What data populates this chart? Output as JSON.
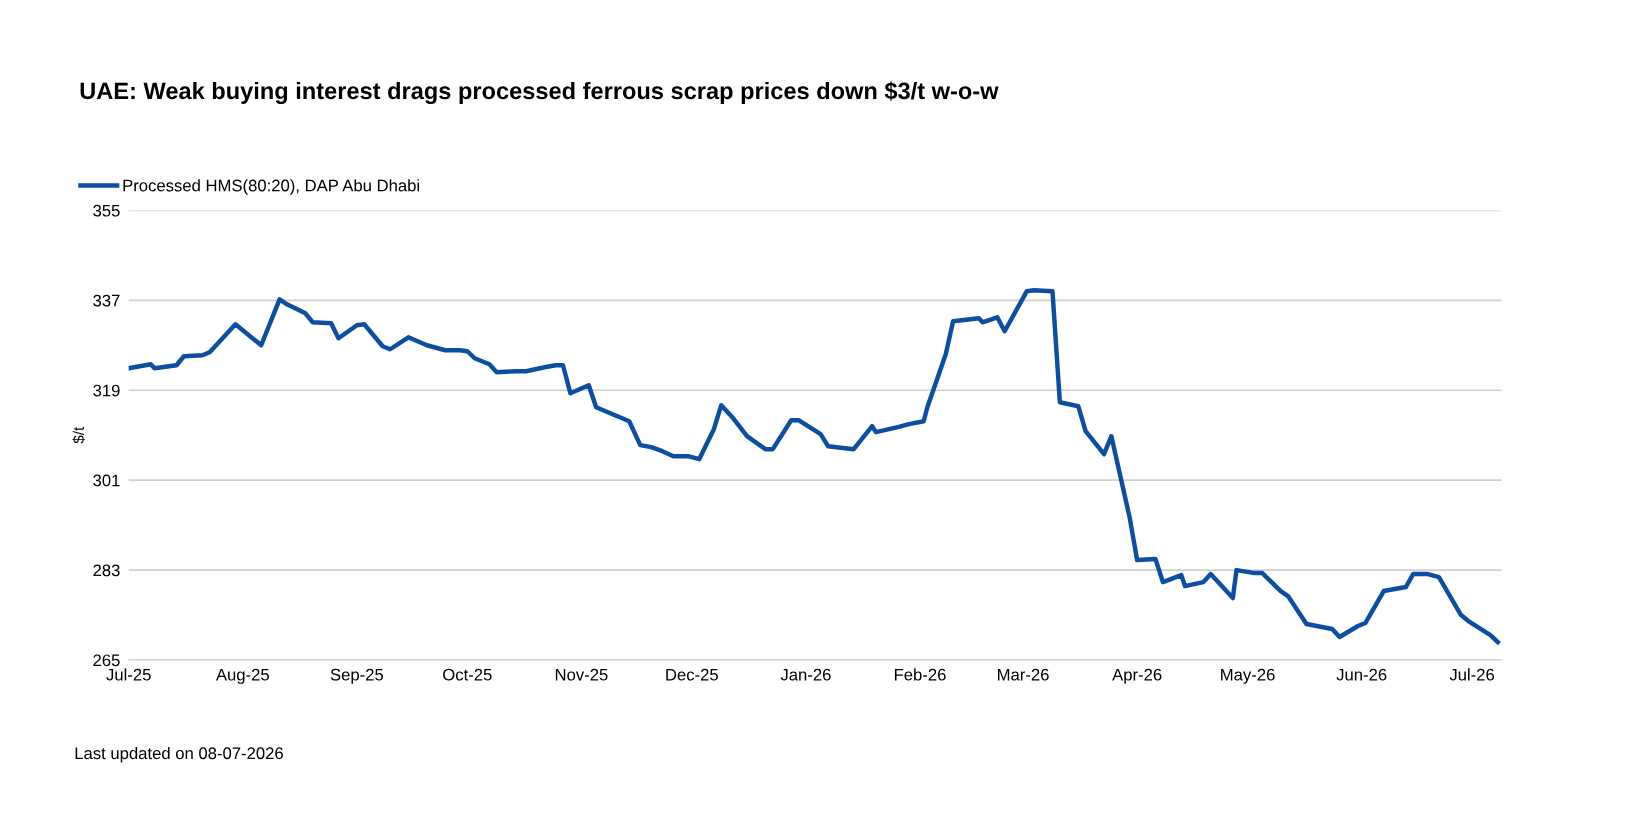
{
  "chart_data": {
    "type": "line",
    "title": "UAE: Weak buying interest drags processed ferrous scrap prices down $3/t w-o-w",
    "ylabel": "$/t",
    "annotations": [
      "Last updated on 08-07-2026"
    ],
    "x": [
      "2025-07-01",
      "2025-07-07",
      "2025-07-08",
      "2025-07-14",
      "2025-07-16",
      "2025-07-21",
      "2025-07-23",
      "2025-07-30",
      "2025-08-06",
      "2025-08-11",
      "2025-08-13",
      "2025-08-18",
      "2025-08-20",
      "2025-08-25",
      "2025-08-27",
      "2025-09-01",
      "2025-09-03",
      "2025-09-08",
      "2025-09-10",
      "2025-09-15",
      "2025-09-20",
      "2025-09-25",
      "2025-09-29",
      "2025-10-01",
      "2025-10-03",
      "2025-10-07",
      "2025-10-09",
      "2025-10-14",
      "2025-10-17",
      "2025-10-22",
      "2025-10-25",
      "2025-10-27",
      "2025-10-29",
      "2025-11-03",
      "2025-11-05",
      "2025-11-14",
      "2025-11-17",
      "2025-11-20",
      "2025-11-23",
      "2025-11-26",
      "2025-11-30",
      "2025-12-03",
      "2025-12-07",
      "2025-12-09",
      "2025-12-12",
      "2025-12-16",
      "2025-12-21",
      "2025-12-23",
      "2025-12-28",
      "2025-12-30",
      "2026-01-05",
      "2026-01-07",
      "2026-01-14",
      "2026-01-19",
      "2026-01-20",
      "2026-01-26",
      "2026-01-29",
      "2026-02-02",
      "2026-02-03",
      "2026-02-08",
      "2026-02-10",
      "2026-02-17",
      "2026-02-18",
      "2026-02-22",
      "2026-02-24",
      "2026-03-02",
      "2026-03-04",
      "2026-03-09",
      "2026-03-11",
      "2026-03-16",
      "2026-03-18",
      "2026-03-23",
      "2026-03-25",
      "2026-03-30",
      "2026-04-01",
      "2026-04-06",
      "2026-04-08",
      "2026-04-13",
      "2026-04-14",
      "2026-04-19",
      "2026-04-21",
      "2026-04-27",
      "2026-04-28",
      "2026-05-03",
      "2026-05-05",
      "2026-05-10",
      "2026-05-12",
      "2026-05-17",
      "2026-05-24",
      "2026-05-26",
      "2026-05-31",
      "2026-06-02",
      "2026-06-07",
      "2026-06-13",
      "2026-06-15",
      "2026-06-19",
      "2026-06-22",
      "2026-06-28",
      "2026-06-30",
      "2026-07-03",
      "2026-07-06",
      "2026-07-08"
    ],
    "series": [
      {
        "name": "Processed HMS(80:20), DAP Abu Dhabi",
        "color": "#0b4ea2",
        "values": [
          323.4,
          324.2,
          323.4,
          324,
          325.8,
          326,
          326.6,
          332.2,
          328,
          337.2,
          336.2,
          334.4,
          332.6,
          332.4,
          329.4,
          332,
          332.2,
          327.8,
          327.2,
          329.6,
          328,
          327,
          327,
          326.8,
          325.4,
          324.2,
          322.6,
          322.8,
          322.8,
          323.6,
          324,
          324,
          318.4,
          320,
          315.6,
          312.8,
          308,
          307.6,
          306.8,
          305.8,
          305.8,
          305.2,
          311.2,
          316,
          313.6,
          309.8,
          307.2,
          307.2,
          313,
          313,
          310.2,
          307.8,
          307.2,
          311.8,
          310.6,
          311.6,
          312.2,
          312.8,
          315.6,
          326.2,
          332.8,
          333.4,
          332.6,
          333.6,
          330.8,
          338.8,
          339,
          338.8,
          316.6,
          315.8,
          310.8,
          306.2,
          309.8,
          293.4,
          285,
          285.2,
          280.6,
          282,
          279.8,
          280.6,
          282.2,
          277.4,
          283,
          282.4,
          282.4,
          278.8,
          277.8,
          272.2,
          271.2,
          269.6,
          271.8,
          272.4,
          278.8,
          279.6,
          282.2,
          282.2,
          281.6,
          274,
          272.8,
          271.4,
          270,
          268.6
        ]
      }
    ],
    "xlim": [
      "2025-07-01",
      "2026-07-09"
    ],
    "xticks": [
      {
        "value": "2025-07-01",
        "label": "Jul-25"
      },
      {
        "value": "2025-08-01",
        "label": "Aug-25"
      },
      {
        "value": "2025-09-01",
        "label": "Sep-25"
      },
      {
        "value": "2025-10-01",
        "label": "Oct-25"
      },
      {
        "value": "2025-11-01",
        "label": "Nov-25"
      },
      {
        "value": "2025-12-01",
        "label": "Dec-25"
      },
      {
        "value": "2026-01-01",
        "label": "Jan-26"
      },
      {
        "value": "2026-02-01",
        "label": "Feb-26"
      },
      {
        "value": "2026-03-01",
        "label": "Mar-26"
      },
      {
        "value": "2026-04-01",
        "label": "Apr-26"
      },
      {
        "value": "2026-05-01",
        "label": "May-26"
      },
      {
        "value": "2026-06-01",
        "label": "Jun-26"
      },
      {
        "value": "2026-07-01",
        "label": "Jul-26"
      }
    ],
    "ylim": [
      265,
      355
    ],
    "yticks": [
      265,
      283,
      301,
      319,
      337,
      355
    ],
    "grid": "y",
    "legend": "top left",
    "marker": "none",
    "line_style": "solid"
  }
}
